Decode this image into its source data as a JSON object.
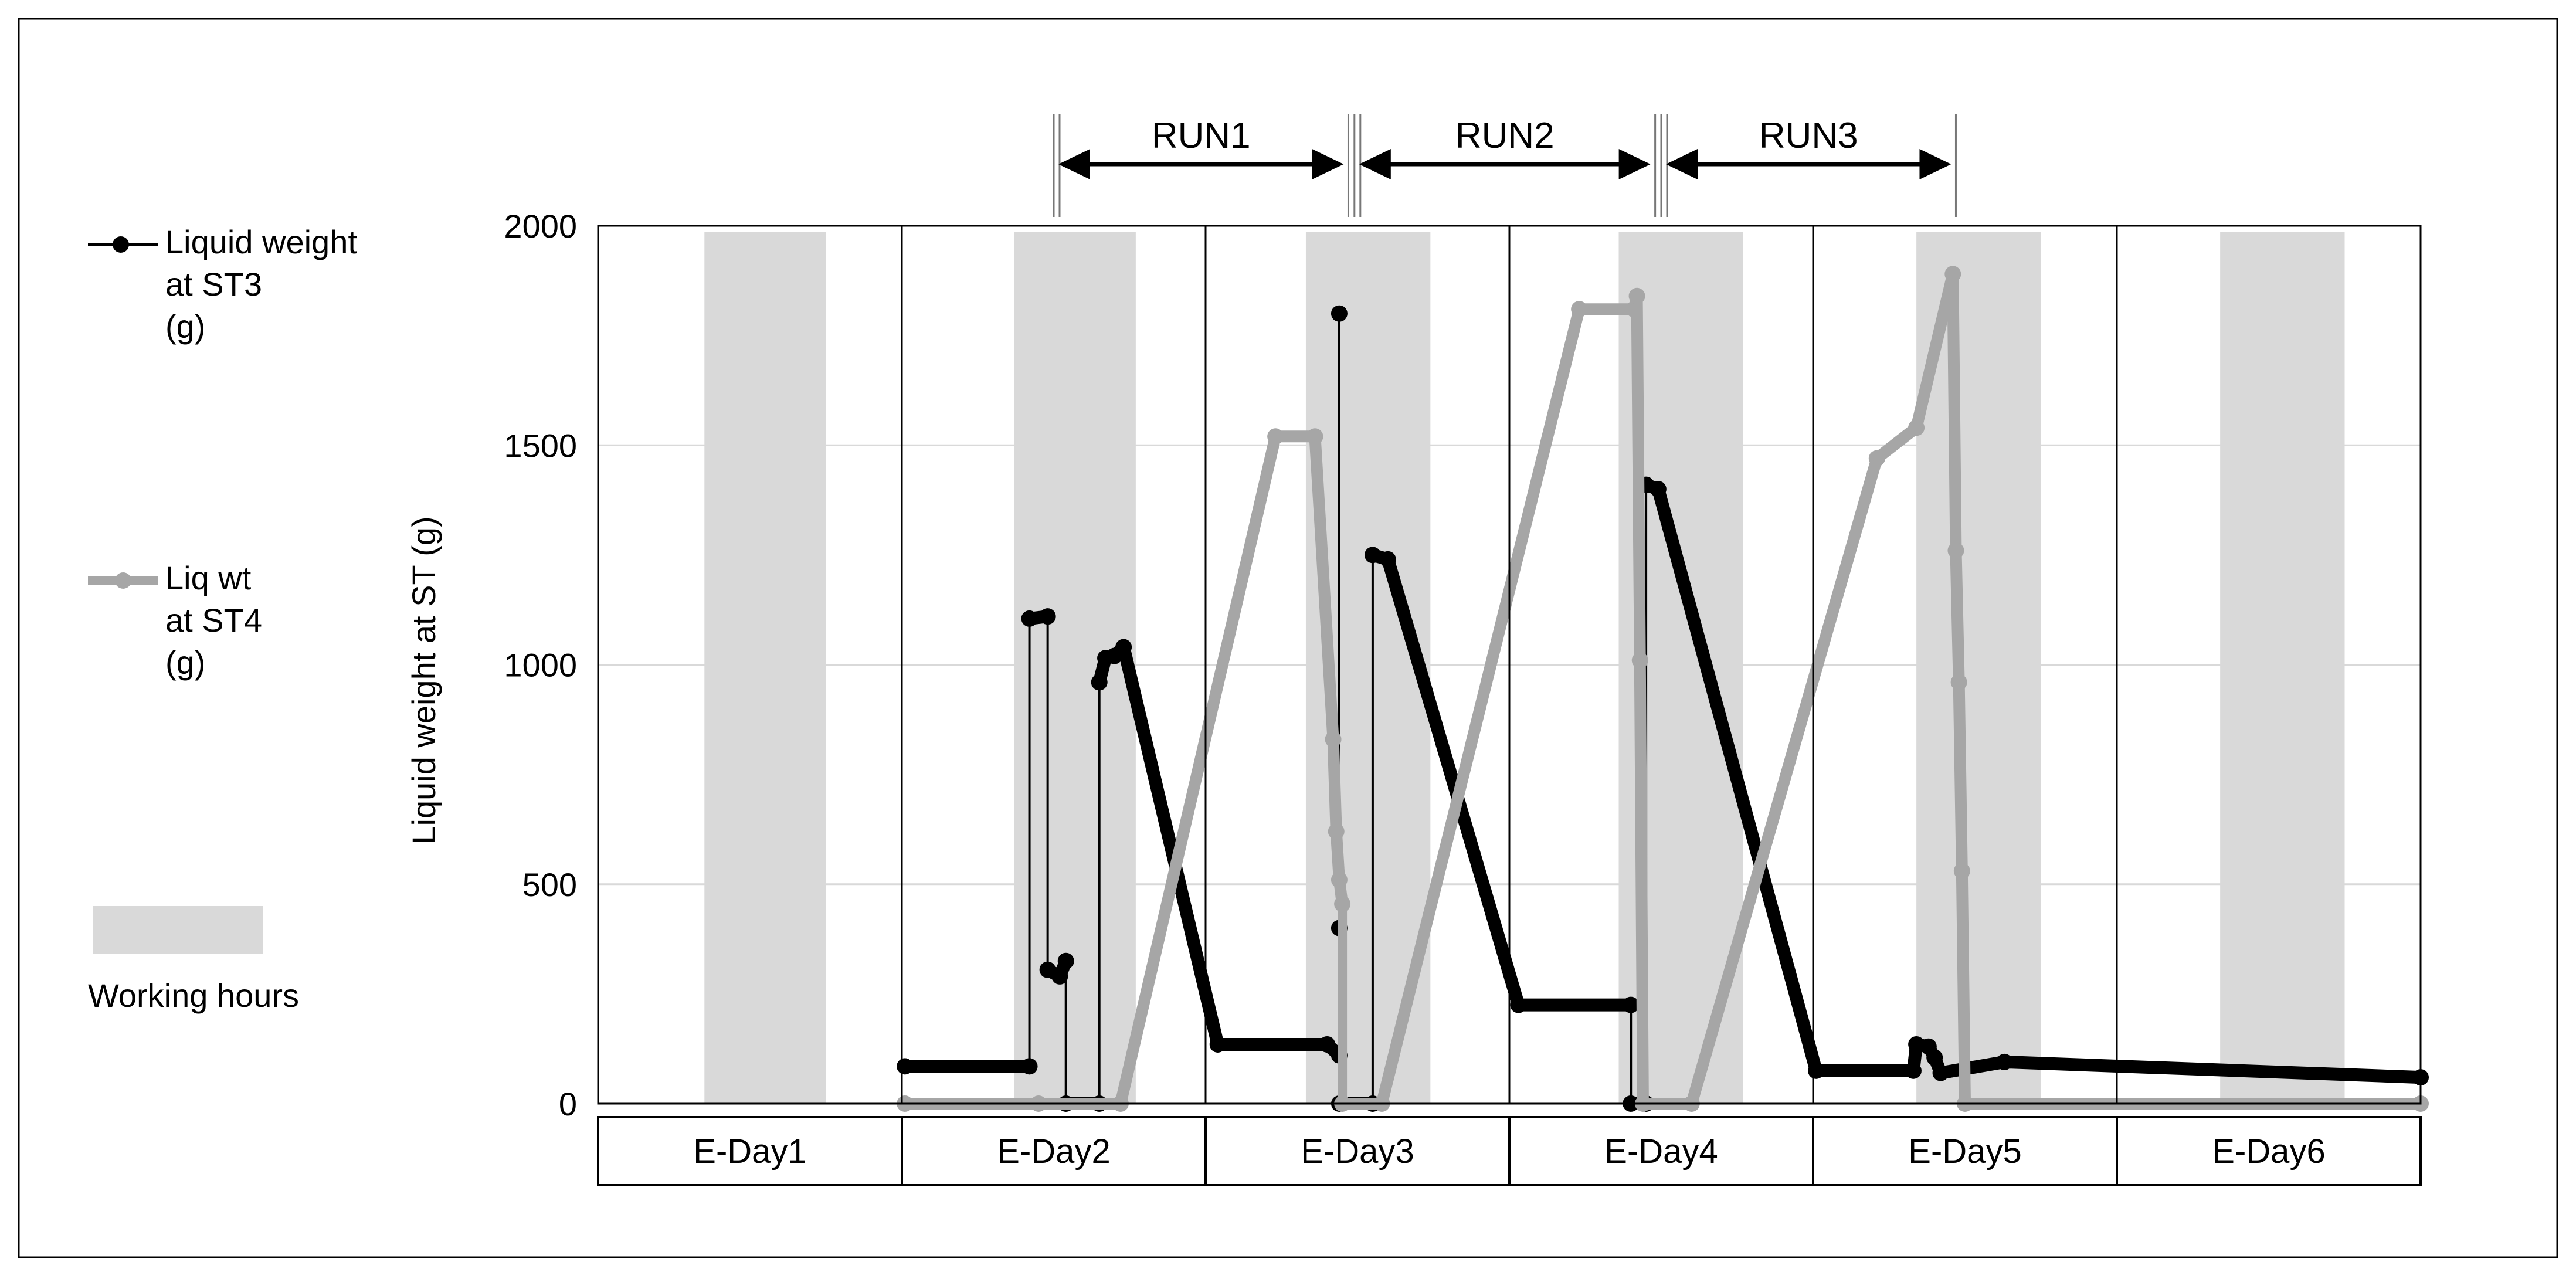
{
  "chart_data": {
    "type": "line",
    "ylabel": "Liquid weight at ST (g)",
    "ylim": [
      0,
      2000
    ],
    "yticks": [
      0,
      500,
      1000,
      1500,
      2000
    ],
    "xlim": [
      0,
      6
    ],
    "grid": "horizontal",
    "legend_position": "left",
    "day_labels": [
      "E-Day1",
      "E-Day2",
      "E-Day3",
      "E-Day4",
      "E-Day5",
      "E-Day6"
    ],
    "working_hours": {
      "label": "Working hours",
      "color": "#d9d9d9",
      "intervals": [
        [
          0.35,
          0.75
        ],
        [
          1.37,
          1.77
        ],
        [
          2.33,
          2.74
        ],
        [
          3.36,
          3.77
        ],
        [
          4.34,
          4.75
        ],
        [
          5.34,
          5.75
        ]
      ]
    },
    "runs": [
      {
        "label": "RUN1",
        "start": 1.5,
        "end": 2.47
      },
      {
        "label": "RUN2",
        "start": 2.49,
        "end": 3.48
      },
      {
        "label": "RUN3",
        "start": 3.5,
        "end": 4.47
      }
    ],
    "series": [
      {
        "name": "Liquid weight  at ST3 (g)",
        "color": "#000000",
        "points": [
          [
            1.01,
            85
          ],
          [
            1.42,
            85
          ],
          [
            1.42,
            1105
          ],
          [
            1.48,
            1110
          ],
          [
            1.48,
            305
          ],
          [
            1.52,
            290
          ],
          [
            1.54,
            325
          ],
          [
            1.54,
            0
          ],
          [
            1.65,
            0
          ],
          [
            1.65,
            960
          ],
          [
            1.67,
            1015
          ],
          [
            1.7,
            1020
          ],
          [
            1.73,
            1040
          ],
          [
            2.04,
            135
          ],
          [
            2.4,
            135
          ],
          [
            2.44,
            110
          ],
          [
            2.44,
            1800
          ],
          [
            2.44,
            400
          ],
          [
            2.44,
            0
          ],
          [
            2.55,
            0
          ],
          [
            2.55,
            1250
          ],
          [
            2.6,
            1240
          ],
          [
            3.03,
            225
          ],
          [
            3.4,
            225
          ],
          [
            3.4,
            0
          ],
          [
            3.45,
            0
          ],
          [
            3.45,
            1410
          ],
          [
            3.49,
            1400
          ],
          [
            4.01,
            75
          ],
          [
            4.33,
            75
          ],
          [
            4.34,
            135
          ],
          [
            4.38,
            130
          ],
          [
            4.4,
            105
          ],
          [
            4.42,
            70
          ],
          [
            4.63,
            95
          ],
          [
            6.0,
            60
          ]
        ]
      },
      {
        "name": "Liq wt at ST4 (g)",
        "color": "#a6a6a6",
        "points": [
          [
            1.01,
            0
          ],
          [
            1.45,
            0
          ],
          [
            1.72,
            0
          ],
          [
            2.23,
            1520
          ],
          [
            2.36,
            1520
          ],
          [
            2.42,
            830
          ],
          [
            2.43,
            620
          ],
          [
            2.44,
            510
          ],
          [
            2.45,
            455
          ],
          [
            2.45,
            0
          ],
          [
            2.58,
            0
          ],
          [
            3.23,
            1810
          ],
          [
            3.41,
            1810
          ],
          [
            3.42,
            1840
          ],
          [
            3.43,
            1010
          ],
          [
            3.44,
            0
          ],
          [
            3.6,
            0
          ],
          [
            4.21,
            1470
          ],
          [
            4.34,
            1540
          ],
          [
            4.46,
            1890
          ],
          [
            4.47,
            1260
          ],
          [
            4.48,
            960
          ],
          [
            4.49,
            530
          ],
          [
            4.5,
            0
          ],
          [
            6.0,
            0
          ]
        ]
      }
    ]
  }
}
